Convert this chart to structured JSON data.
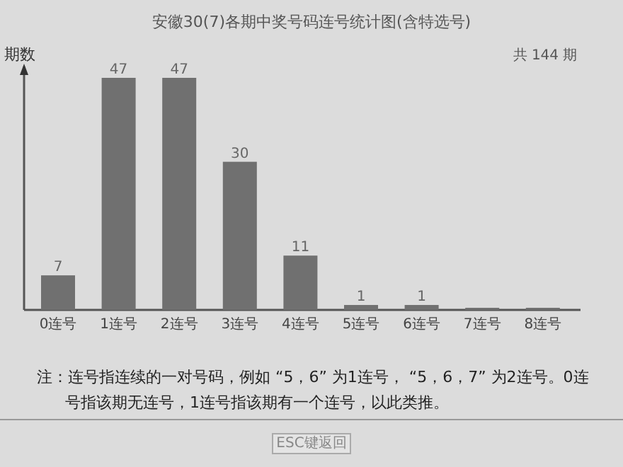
{
  "chart_data": {
    "type": "bar",
    "title": "安徽30(7)各期中奖号码连号统计图(含特选号)",
    "ylabel": "期数",
    "categories": [
      "0连号",
      "1连号",
      "2连号",
      "3连号",
      "4连号",
      "5连号",
      "6连号",
      "7连号",
      "8连号"
    ],
    "values": [
      7,
      47,
      47,
      30,
      11,
      1,
      1,
      0,
      0
    ],
    "value_labels": [
      "7",
      "47",
      "47",
      "30",
      "11",
      "1",
      "1",
      null,
      null
    ],
    "color": "#707070",
    "annotations": [
      "共 144 期",
      "注：连号指连续的一对号码，例如 “5，6” 为1连号， “5，6，7” 为2连号。0连号指该期无连号，1连号指该期有一个连号，以此类推。",
      "ESC键返回"
    ]
  }
}
